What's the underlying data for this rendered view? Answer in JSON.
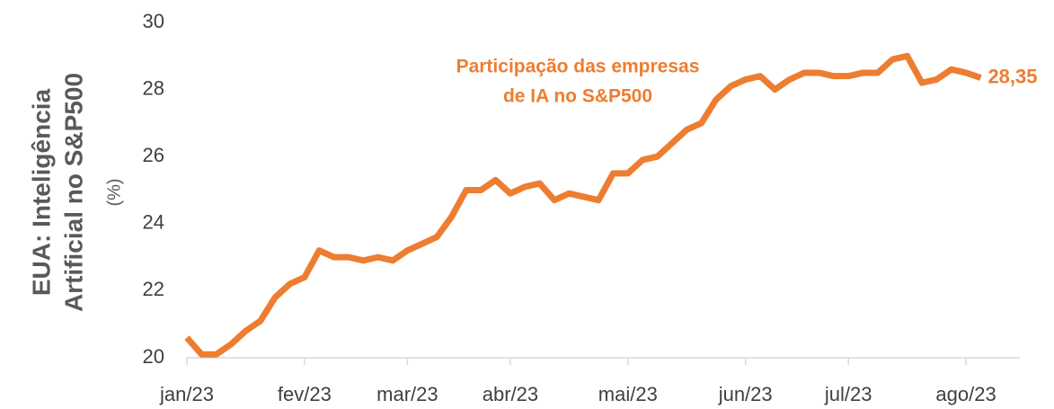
{
  "chart_data": {
    "type": "line",
    "ylabel": [
      "EUA: Inteligência",
      "Artificial no S&P500"
    ],
    "yunit": "(%)",
    "annotation": [
      "Participação das empresas",
      "de IA no S&P500"
    ],
    "categories": [
      "jan/23",
      null,
      null,
      null,
      null,
      null,
      null,
      null,
      "fev/23",
      null,
      null,
      null,
      null,
      null,
      null,
      "mar/23",
      null,
      null,
      null,
      null,
      null,
      null,
      "abr/23",
      null,
      null,
      null,
      null,
      null,
      null,
      null,
      "mai/23",
      null,
      null,
      null,
      null,
      null,
      null,
      null,
      "jun/23",
      null,
      null,
      null,
      null,
      null,
      null,
      "jul/23",
      null,
      null,
      null,
      null,
      null,
      null,
      null,
      "ago/23",
      null
    ],
    "series": [
      {
        "name": "Participação das empresas de IA no S&P500",
        "color": "#ED7D31",
        "values": [
          20.6,
          20.1,
          20.1,
          20.4,
          20.8,
          21.1,
          21.8,
          22.2,
          22.4,
          23.2,
          23.0,
          23.0,
          22.9,
          23.0,
          22.9,
          23.2,
          23.4,
          23.6,
          24.2,
          25.0,
          25.0,
          25.3,
          24.9,
          25.1,
          25.2,
          24.7,
          24.9,
          24.8,
          24.7,
          25.5,
          25.5,
          25.9,
          26.0,
          26.4,
          26.8,
          27.0,
          27.7,
          28.1,
          28.3,
          28.4,
          28.0,
          28.3,
          28.5,
          28.5,
          28.4,
          28.4,
          28.5,
          28.5,
          28.9,
          29.0,
          28.2,
          28.3,
          28.6,
          28.5,
          28.35
        ],
        "value_labels": [
          null,
          null,
          null,
          null,
          null,
          null,
          null,
          null,
          null,
          null,
          null,
          null,
          null,
          null,
          null,
          null,
          null,
          null,
          null,
          null,
          null,
          null,
          null,
          null,
          null,
          null,
          null,
          null,
          null,
          null,
          null,
          null,
          null,
          null,
          null,
          null,
          null,
          null,
          null,
          null,
          null,
          null,
          null,
          null,
          null,
          null,
          null,
          null,
          null,
          null,
          null,
          null,
          null,
          null,
          "28,35"
        ]
      }
    ],
    "ylim": [
      20,
      30
    ],
    "yticks": [
      20,
      22,
      24,
      26,
      28,
      30
    ]
  }
}
